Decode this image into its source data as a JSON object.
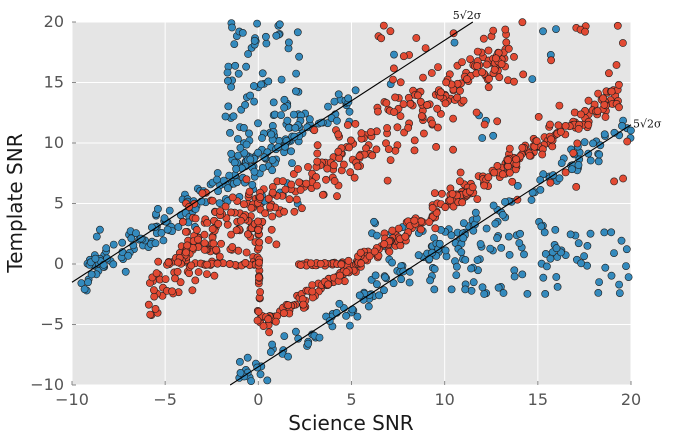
{
  "chart_data": {
    "type": "scatter",
    "title": "",
    "xlabel": "Science SNR",
    "ylabel": "Template SNR",
    "xlim": [
      -10,
      20
    ],
    "ylim": [
      -10,
      20
    ],
    "x_ticks": [
      -10,
      -5,
      0,
      5,
      10,
      15,
      20
    ],
    "y_ticks": [
      -10,
      -5,
      0,
      5,
      10,
      15,
      20
    ],
    "x_tick_labels": [
      "−10",
      "−5",
      "0",
      "5",
      "10",
      "15",
      "20"
    ],
    "y_tick_labels": [
      "−10",
      "−5",
      "0",
      "5",
      "10",
      "15",
      "20"
    ],
    "grid": true,
    "background": "#e5e5e5",
    "series": [
      {
        "name": "blue",
        "color": "#348abd",
        "seed": 11,
        "clusters": [
          {
            "kind": "band",
            "n": 190,
            "x": [
              -9.5,
              5
            ],
            "offset": 8.49,
            "spread": 1.6
          },
          {
            "kind": "band",
            "n": 150,
            "x": [
              -1.5,
              20
            ],
            "offset": -8.49,
            "spread": 1.4
          },
          {
            "kind": "box",
            "n": 110,
            "x": [
              -1.8,
              2.2
            ],
            "y": [
              5,
              20
            ]
          },
          {
            "kind": "box",
            "n": 120,
            "x": [
              6,
              20
            ],
            "y": [
              -2.5,
              3.5
            ]
          },
          {
            "kind": "box",
            "n": 14,
            "x": [
              4.5,
              16
            ],
            "y": [
              10,
              19.5
            ]
          }
        ]
      },
      {
        "name": "red",
        "color": "#e24a33",
        "seed": 29,
        "clusters": [
          {
            "kind": "band",
            "n": 330,
            "x": [
              -6,
              14
            ],
            "offset": 4.2,
            "spread": 2.6
          },
          {
            "kind": "band",
            "n": 300,
            "x": [
              0,
              19.5
            ],
            "offset": -5.2,
            "spread": 0.9
          },
          {
            "kind": "box",
            "n": 70,
            "x": [
              -4.5,
              1
            ],
            "y": [
              -1,
              6
            ]
          },
          {
            "kind": "box",
            "n": 22,
            "x": [
              -5,
              0
            ],
            "y": [
              -0.15,
              0.15
            ]
          },
          {
            "kind": "box",
            "n": 22,
            "x": [
              2,
              4.5
            ],
            "y": [
              -0.15,
              0.15
            ]
          },
          {
            "kind": "box",
            "n": 24,
            "x": [
              -0.05,
              0.1
            ],
            "y": [
              -5,
              4
            ]
          },
          {
            "kind": "box",
            "n": 70,
            "x": [
              6,
              20
            ],
            "y": [
              5,
              20
            ]
          }
        ]
      }
    ],
    "reference_lines": [
      {
        "label": "5√2σ",
        "slope": 1,
        "intercept": 8.49,
        "color": "#000000"
      },
      {
        "label": "5√2σ",
        "slope": 1,
        "intercept": -8.49,
        "color": "#000000"
      }
    ]
  }
}
